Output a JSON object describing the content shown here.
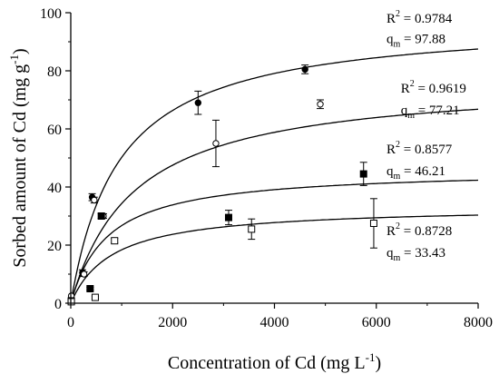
{
  "chart_data": {
    "type": "scatter",
    "title": "",
    "xlabel": {
      "main": "Concentration of Cd (mg L",
      "sup": "-1",
      "tail": ")"
    },
    "ylabel": {
      "main": "Sorbed amount of Cd (mg g",
      "sup": "-1",
      "tail": ")"
    },
    "xlim": [
      0,
      8000
    ],
    "ylim": [
      0,
      100
    ],
    "xticks": [
      0,
      2000,
      4000,
      6000,
      8000
    ],
    "yticks": [
      0,
      20,
      40,
      60,
      80,
      100
    ],
    "grid": false,
    "legend": "none",
    "series": [
      {
        "marker": "filled-circle",
        "points": [
          {
            "x": 10,
            "y": 1.5,
            "err": 0
          },
          {
            "x": 230,
            "y": 10.5,
            "err": 1.0
          },
          {
            "x": 420,
            "y": 36.5,
            "err": 1.2
          },
          {
            "x": 620,
            "y": 30.0,
            "err": 0.8
          },
          {
            "x": 2500,
            "y": 69.0,
            "err": 4.0
          },
          {
            "x": 4600,
            "y": 80.5,
            "err": 1.5
          }
        ],
        "fit": {
          "qm": 97.88,
          "k": 950,
          "max_x": 8000
        },
        "annotation": {
          "r2": "0.9784",
          "qm": "97.88",
          "x": 6200,
          "y": 96.5,
          "qm_y": 89.5
        }
      },
      {
        "marker": "open-circle",
        "points": [
          {
            "x": 10,
            "y": 2.5,
            "err": 0
          },
          {
            "x": 260,
            "y": 10.0,
            "err": 0.8
          },
          {
            "x": 460,
            "y": 35.5,
            "err": 1.0
          },
          {
            "x": 640,
            "y": 30.0,
            "err": 0.8
          },
          {
            "x": 2850,
            "y": 55.0,
            "err": 8.0
          },
          {
            "x": 4900,
            "y": 68.5,
            "err": 1.5
          }
        ],
        "fit": {
          "qm": 77.21,
          "k": 1250,
          "max_x": 8000
        },
        "annotation": {
          "r2": "0.9619",
          "qm": "77.21",
          "x": 6480,
          "y": 72.5,
          "qm_y": 65.0
        }
      },
      {
        "marker": "filled-square",
        "points": [
          {
            "x": 10,
            "y": 0.8,
            "err": 0
          },
          {
            "x": 380,
            "y": 5.0,
            "err": 0.5
          },
          {
            "x": 600,
            "y": 30.0,
            "err": 0.8
          },
          {
            "x": 3100,
            "y": 29.5,
            "err": 2.5
          },
          {
            "x": 5750,
            "y": 44.5,
            "err": 4.0
          }
        ],
        "fit": {
          "qm": 46.21,
          "k": 730,
          "max_x": 8000
        },
        "annotation": {
          "r2": "0.8577",
          "qm": "46.21",
          "x": 6200,
          "y": 51.5,
          "qm_y": 44.0
        }
      },
      {
        "marker": "open-square",
        "points": [
          {
            "x": 10,
            "y": 0.5,
            "err": 0
          },
          {
            "x": 480,
            "y": 2.0,
            "err": 0.4
          },
          {
            "x": 860,
            "y": 21.5,
            "err": 0.8
          },
          {
            "x": 3550,
            "y": 25.5,
            "err": 3.5
          },
          {
            "x": 5950,
            "y": 27.5,
            "err": 8.5
          }
        ],
        "fit": {
          "qm": 33.43,
          "k": 820,
          "max_x": 8000
        },
        "annotation": {
          "r2": "0.8728",
          "qm": "33.43",
          "x": 6200,
          "y": 23.5,
          "qm_y": 16.0
        }
      }
    ]
  }
}
